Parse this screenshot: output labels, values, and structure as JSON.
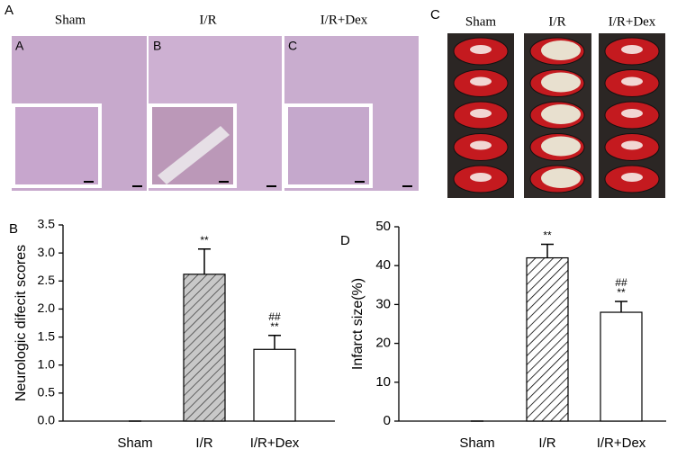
{
  "histology": {
    "panel_label": "A",
    "columns": [
      "Sham",
      "I/R",
      "I/R+Dex"
    ],
    "sublabels": [
      "A",
      "B",
      "C"
    ]
  },
  "ttc": {
    "panel_label": "C",
    "columns": [
      "Sham",
      "I/R",
      "I/R+Dex"
    ]
  },
  "chart_data": [
    {
      "type": "bar",
      "panel_label": "B",
      "y_label": "Neurologic difecit scores",
      "categories": [
        "Sham",
        "I/R",
        "I/R+Dex"
      ],
      "values": [
        0,
        2.62,
        1.28
      ],
      "errors": [
        0,
        0.45,
        0.25
      ],
      "colors": [
        "#ffffff",
        "#c8c8c8",
        "#ffffff"
      ],
      "hatch": [
        false,
        true,
        false
      ],
      "annotations": [
        null,
        [
          "**"
        ],
        [
          "##",
          "**"
        ]
      ],
      "ylim": [
        0,
        3.5
      ],
      "yticks": [
        {
          "value": 0,
          "label": "0.0"
        },
        0.5,
        {
          "value": 1,
          "label": "1.0"
        },
        1.5,
        {
          "value": 2,
          "label": "2.0"
        },
        2.5,
        {
          "value": 3,
          "label": "3.0"
        },
        3.5
      ]
    },
    {
      "type": "bar",
      "panel_label": "D",
      "y_label": "Infarct size(%)",
      "categories": [
        "Sham",
        "I/R",
        "I/R+Dex"
      ],
      "values": [
        0,
        42,
        28
      ],
      "errors": [
        0,
        3.5,
        2.8
      ],
      "colors": [
        "#ffffff",
        "#ffffff",
        "#ffffff"
      ],
      "hatch": [
        false,
        true,
        false
      ],
      "annotations": [
        null,
        [
          "**"
        ],
        [
          "##",
          "**"
        ]
      ],
      "ylim": [
        0,
        50
      ],
      "yticks": [
        0,
        10,
        20,
        30,
        40,
        50
      ]
    }
  ]
}
